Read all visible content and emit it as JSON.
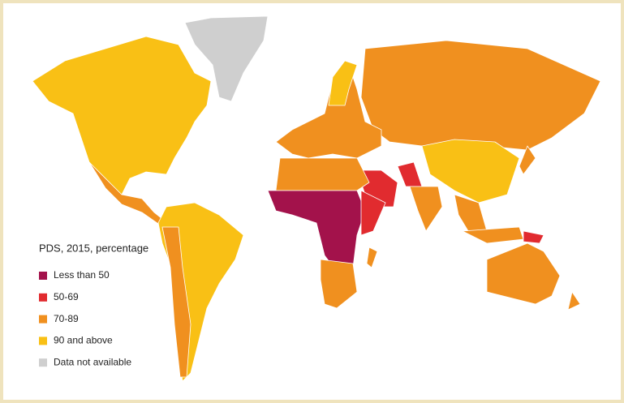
{
  "legend": {
    "title": "PDS, 2015, percentage",
    "items": [
      {
        "label": "Less than 50",
        "color": "#a3124b"
      },
      {
        "label": "50-69",
        "color": "#e12b2f"
      },
      {
        "label": "70-89",
        "color": "#f0901f"
      },
      {
        "label": "90 and above",
        "color": "#f9c015"
      },
      {
        "label": "Data not available",
        "color": "#cfcfcf"
      }
    ]
  }
}
